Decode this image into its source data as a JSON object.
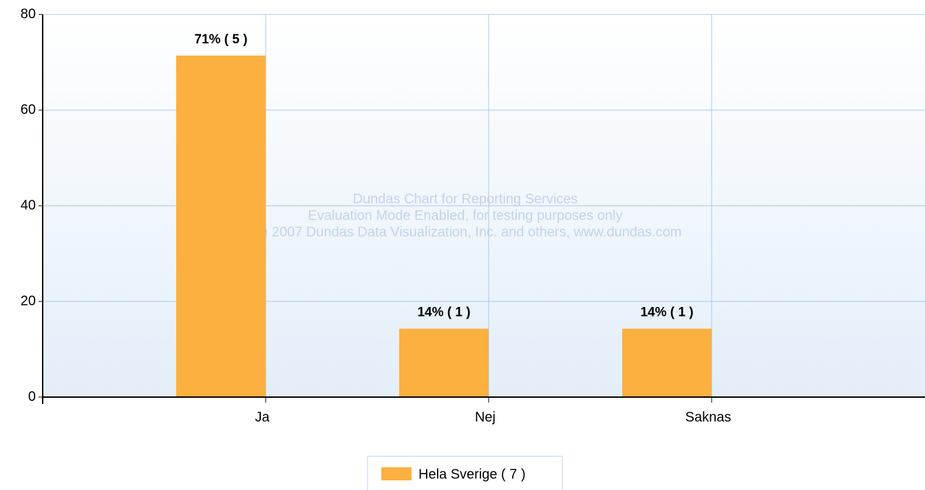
{
  "chart_data": {
    "type": "bar",
    "categories": [
      "Ja",
      "Nej",
      "Saknas"
    ],
    "series": [
      {
        "name": "Hela Sverige ( 7 )",
        "color": "#fbb040",
        "values": [
          71.4,
          14.3,
          14.3
        ],
        "value_labels": [
          "71% ( 5 )",
          "14% ( 1 )",
          "14% ( 1 )"
        ]
      }
    ],
    "ylim": [
      0,
      80
    ],
    "yticks": [
      0,
      20,
      40,
      60,
      80
    ],
    "grid": true,
    "legend": "bottom",
    "annotations": [
      "Dundas Chart for Reporting Services",
      "Evaluation Mode Enabled, for testing purposes only",
      "(C) 2007 Dundas Data Visualization, Inc. and others, www.dundas.com"
    ]
  }
}
